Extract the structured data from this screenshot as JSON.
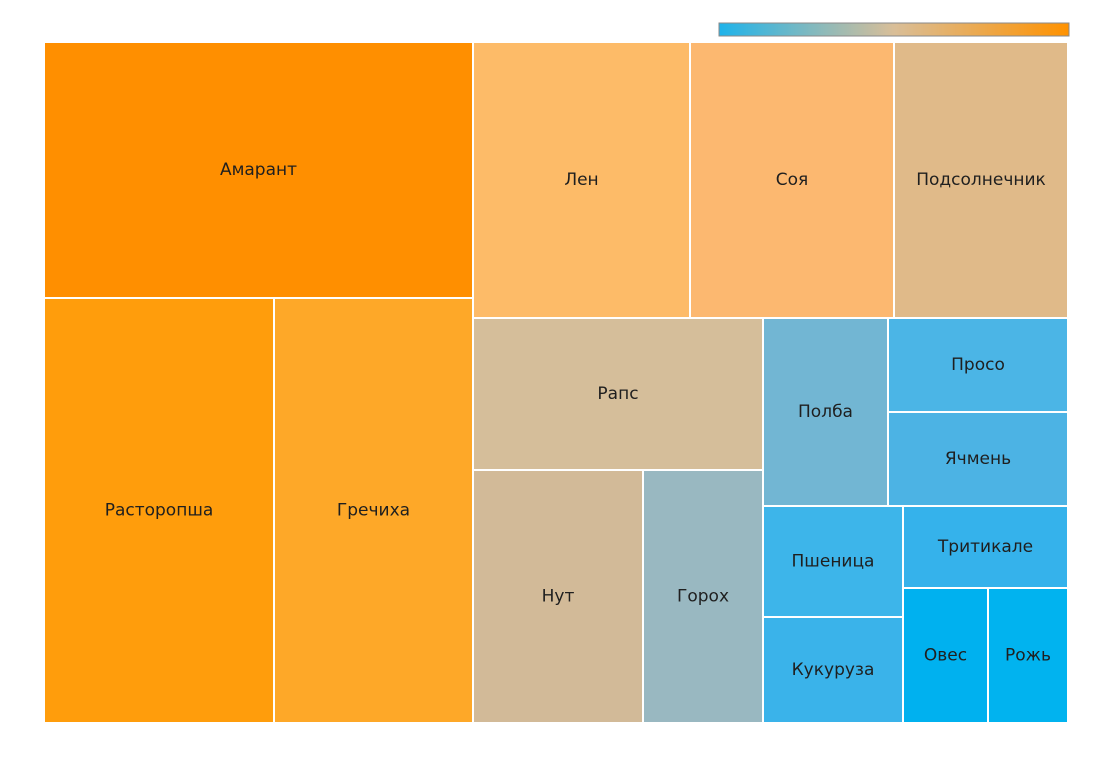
{
  "chart_data": {
    "type": "treemap",
    "title": "",
    "colorbar": {
      "colors": [
        "#1EB3EA",
        "#D9BE98",
        "#FF9200"
      ]
    },
    "cells": [
      {
        "label": "Амарант",
        "color": "#FF8F00"
      },
      {
        "label": "Расторопша",
        "color": "#FF9D0C"
      },
      {
        "label": "Гречиха",
        "color": "#FEA828"
      },
      {
        "label": "Лен",
        "color": "#FDBB68"
      },
      {
        "label": "Соя",
        "color": "#FCB870"
      },
      {
        "label": "Подсолнечник",
        "color": "#E0BA89"
      },
      {
        "label": "Рапс",
        "color": "#D5BE9A"
      },
      {
        "label": "Нут",
        "color": "#D2BA98"
      },
      {
        "label": "Горох",
        "color": "#99B8C1"
      },
      {
        "label": "Полба",
        "color": "#72B6D3"
      },
      {
        "label": "Просо",
        "color": "#4BB5E6"
      },
      {
        "label": "Ячмень",
        "color": "#4CB3E4"
      },
      {
        "label": "Пшеница",
        "color": "#3DB5EA"
      },
      {
        "label": "Тритикале",
        "color": "#35B2EB"
      },
      {
        "label": "Кукуруза",
        "color": "#3AB3EA"
      },
      {
        "label": "Овес",
        "color": "#00B1EF"
      },
      {
        "label": "Рожь",
        "color": "#01B3EF"
      }
    ]
  }
}
